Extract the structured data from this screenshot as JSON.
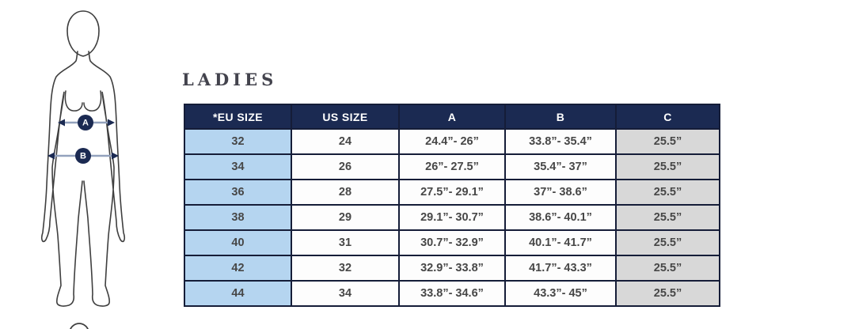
{
  "title": "LADIES",
  "figure": {
    "marker_a": "A",
    "marker_b": "B"
  },
  "table": {
    "headers": [
      "*EU SIZE",
      "US SIZE",
      "A",
      "B",
      "C"
    ],
    "rows": [
      [
        "32",
        "24",
        "24.4”- 26”",
        "33.8”- 35.4”",
        "25.5”"
      ],
      [
        "34",
        "26",
        "26”- 27.5”",
        "35.4”- 37”",
        "25.5”"
      ],
      [
        "36",
        "28",
        "27.5”- 29.1”",
        "37”- 38.6”",
        "25.5”"
      ],
      [
        "38",
        "29",
        "29.1”- 30.7”",
        "38.6”- 40.1”",
        "25.5”"
      ],
      [
        "40",
        "31",
        "30.7”- 32.9”",
        "40.1”- 41.7”",
        "25.5”"
      ],
      [
        "42",
        "32",
        "32.9”- 33.8”",
        "41.7”- 43.3”",
        "25.5”"
      ],
      [
        "44",
        "34",
        "33.8”- 34.6”",
        "43.3”- 45”",
        "25.5”"
      ]
    ]
  },
  "colors": {
    "header_navy": "#1b2a52",
    "border_navy": "#151d38",
    "eu_column_blue": "#b5d5f0",
    "c_column_gray": "#d8d8d8",
    "cell_text": "#474747",
    "figure_outline": "#3f3f3f",
    "arrow_line": "#93a2bd"
  }
}
